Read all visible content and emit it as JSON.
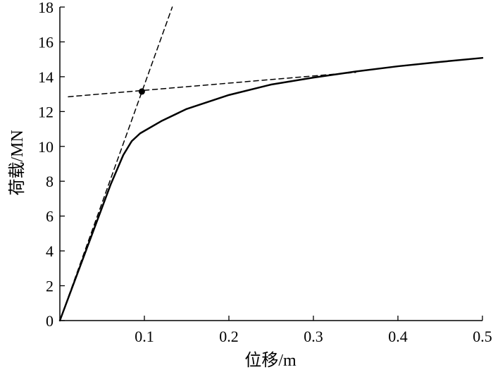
{
  "chart_data": {
    "type": "line",
    "title": "",
    "xlabel": "位移/m",
    "ylabel": "荷载/MN",
    "xlim": [
      0,
      0.5
    ],
    "ylim": [
      0,
      18
    ],
    "grid": false,
    "legend": "none",
    "x_ticks": [
      "0.1",
      "0.2",
      "0.3",
      "0.4",
      "0.5"
    ],
    "y_ticks": [
      "0",
      "2",
      "4",
      "6",
      "8",
      "10",
      "12",
      "14",
      "16",
      "18"
    ],
    "series": [
      {
        "style": "solid",
        "color": "#000000",
        "x": [
          0,
          0.02,
          0.04,
          0.06,
          0.075,
          0.085,
          0.095,
          0.12,
          0.15,
          0.2,
          0.25,
          0.3,
          0.35,
          0.4,
          0.45,
          0.5
        ],
        "y": [
          0,
          2.6,
          5.2,
          7.8,
          9.5,
          10.3,
          10.75,
          11.45,
          12.15,
          12.95,
          13.55,
          13.95,
          14.3,
          14.6,
          14.85,
          15.08
        ]
      },
      {
        "style": "dashed",
        "color": "#000000",
        "x": [
          0,
          0.133
        ],
        "y": [
          0,
          18
        ]
      },
      {
        "style": "dashed",
        "color": "#000000",
        "x": [
          0.01,
          0.35
        ],
        "y": [
          12.85,
          14.25
        ]
      }
    ],
    "markers": [
      {
        "x": 0.097,
        "y": 13.15,
        "color": "#000000"
      }
    ]
  }
}
